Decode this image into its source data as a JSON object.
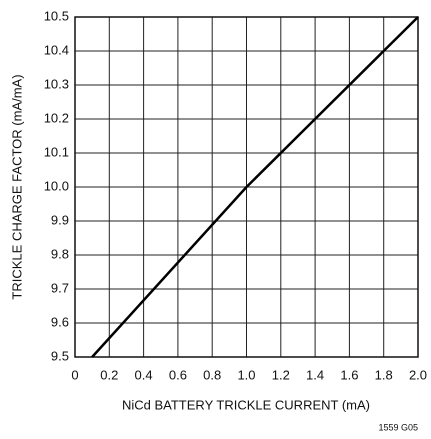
{
  "chart_data": {
    "type": "line",
    "x_label": "NiCd BATTERY TRICKLE CURRENT (mA)",
    "y_label": "TRICKLE CHARGE FACTOR (mA/mA)",
    "footnote": "1559 G05",
    "x": [
      0.1,
      1.0,
      2.0
    ],
    "series": [
      {
        "color": "#000000",
        "values": [
          9.5,
          10.0,
          10.5
        ]
      }
    ],
    "xlim": [
      0,
      2.0
    ],
    "xticks": [
      0,
      0.2,
      0.4,
      0.6,
      0.8,
      {
        "value": 1,
        "label": "1.0"
      },
      1.2,
      1.4,
      1.6,
      1.8,
      {
        "value": 2,
        "label": "2.0"
      }
    ],
    "ylim": [
      9.5,
      10.5
    ],
    "yticks": [
      9.5,
      9.6,
      9.7,
      9.8,
      9.9,
      {
        "value": 10,
        "label": "10.0"
      },
      10.1,
      10.2,
      10.3,
      10.4,
      10.5
    ],
    "grid": true
  }
}
